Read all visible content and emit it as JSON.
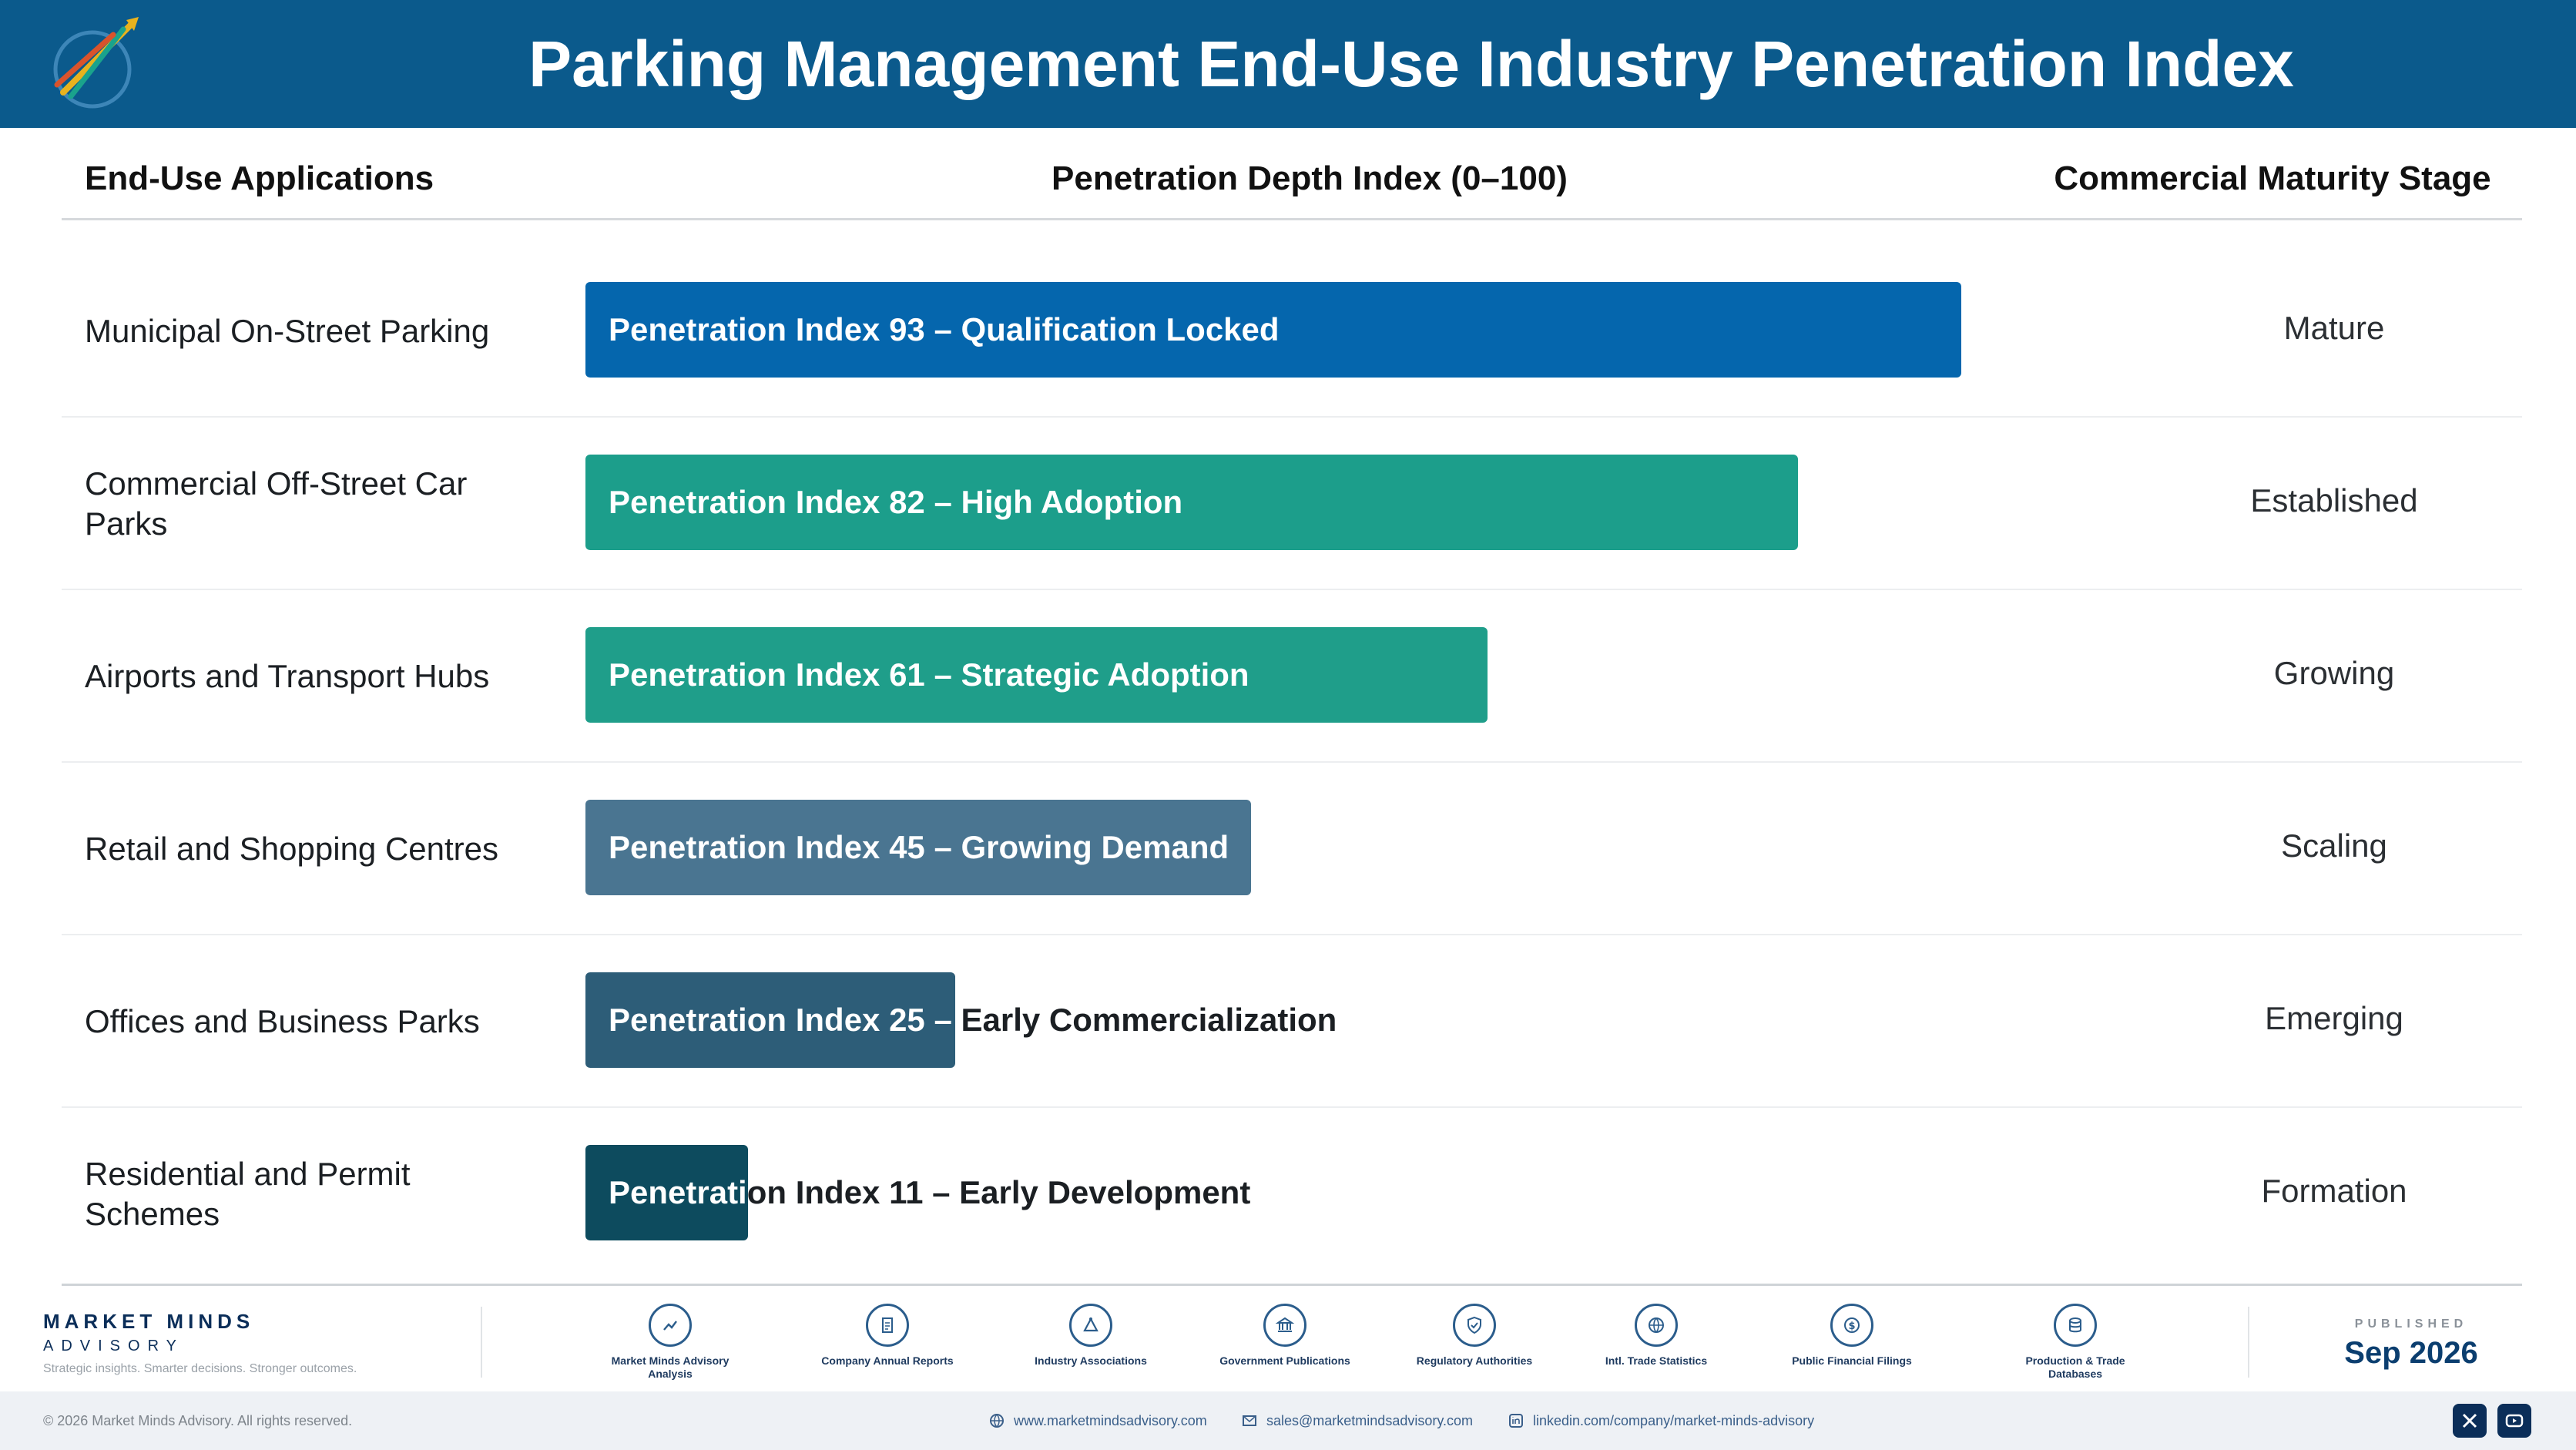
{
  "header": {
    "title": "Parking Management End-Use Industry Penetration Index",
    "bg": "#0b5a8c"
  },
  "columns": {
    "applications": "End-Use Applications",
    "index": "Penetration Depth Index (0–100)",
    "stage": "Commercial Maturity Stage"
  },
  "chart_data": {
    "type": "bar",
    "orientation": "horizontal",
    "xlim": [
      0,
      100
    ],
    "categories": [
      "Municipal On-Street Parking",
      "Commercial Off-Street Car Parks",
      "Airports and Transport Hubs",
      "Retail and Shopping Centres",
      "Offices and Business Parks",
      "Residential and Permit Schemes"
    ],
    "values": [
      93,
      82,
      61,
      45,
      25,
      11
    ],
    "bar_labels": [
      "Penetration Index 93 – Qualification Locked",
      "Penetration Index 82 – High Adoption",
      "Penetration Index 61 – Strategic Adoption",
      "Penetration Index 45 – Growing Demand",
      "Penetration Index 25 – Early Commercialization",
      "Penetration Index 11 – Early Development"
    ],
    "stages": [
      "Mature",
      "Established",
      "Growing",
      "Scaling",
      "Emerging",
      "Formation"
    ],
    "colors": [
      "#0566ad",
      "#1c9e8b",
      "#1f9e8a",
      "#4a7591",
      "#2d5d78",
      "#0d4b5e"
    ]
  },
  "footer": {
    "brand_name": "MARKET MINDS",
    "brand_sub": "ADVISORY",
    "tagline": "Strategic insights. Smarter decisions. Stronger outcomes.",
    "sources": [
      {
        "label": "Market Minds Advisory Analysis",
        "icon": "trend-chart-icon"
      },
      {
        "label": "Company Annual Reports",
        "icon": "document-icon"
      },
      {
        "label": "Industry Associations",
        "icon": "network-icon"
      },
      {
        "label": "Government Publications",
        "icon": "government-building-icon"
      },
      {
        "label": "Regulatory Authorities",
        "icon": "shield-check-icon"
      },
      {
        "label": "Intl. Trade Statistics",
        "icon": "globe-icon"
      },
      {
        "label": "Public Financial Filings",
        "icon": "dollar-coin-icon"
      },
      {
        "label": "Production & Trade Databases",
        "icon": "database-icon"
      }
    ],
    "published_label": "PUBLISHED",
    "published_date": "Sep 2026",
    "copyright": "© 2026 Market Minds Advisory. All rights reserved.",
    "website": "www.marketmindsadvisory.com",
    "email": "sales@marketmindsadvisory.com",
    "linkedin": "linkedin.com/company/market-minds-advisory"
  }
}
